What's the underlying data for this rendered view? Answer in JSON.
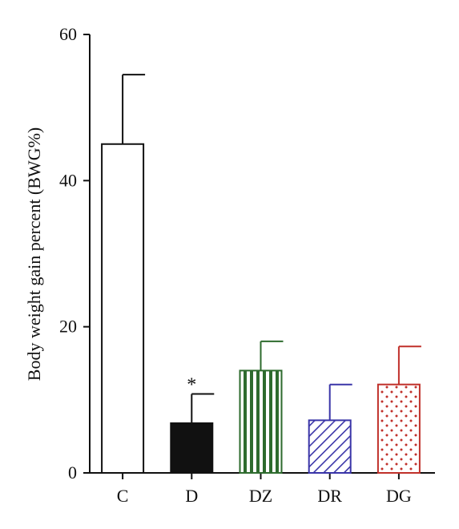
{
  "chart_data": {
    "type": "bar",
    "title": "",
    "xlabel": "",
    "ylabel": "Body weight gain percent (BWG%)",
    "ylim": [
      0,
      60
    ],
    "yticks": [
      0,
      20,
      40,
      60
    ],
    "grid": false,
    "categories": [
      "C",
      "D",
      "DZ",
      "DR",
      "DG"
    ],
    "values": [
      45.0,
      6.8,
      14.0,
      7.2,
      12.1
    ],
    "errors": [
      9.5,
      4.0,
      4.0,
      4.9,
      5.2
    ],
    "annotations": [
      "",
      "*",
      "",
      "",
      ""
    ],
    "styles": [
      {
        "fill": "#ffffff",
        "stroke": "#111111",
        "pattern": "none"
      },
      {
        "fill": "#111111",
        "stroke": "#111111",
        "pattern": "solid"
      },
      {
        "fill": "#ffffff",
        "stroke": "#2e6b2e",
        "pattern": "vertical-lines"
      },
      {
        "fill": "#ffffff",
        "stroke": "#3a35a8",
        "pattern": "diagonal-lines"
      },
      {
        "fill": "#ffffff",
        "stroke": "#c0302a",
        "pattern": "dots"
      }
    ]
  }
}
